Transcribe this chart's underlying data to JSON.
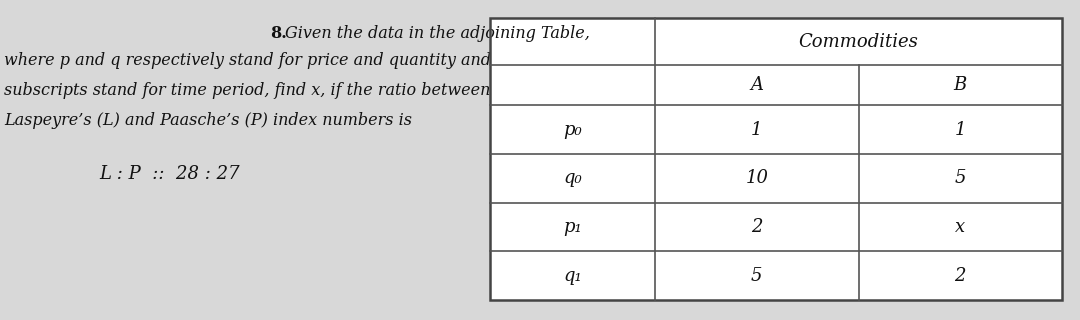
{
  "bg_color": "#d8d8d8",
  "question_number": "8.",
  "question_line1": " Given the data in the adjoining Table,",
  "question_line2": "where p and q respectively stand for price and quantity and",
  "question_line3": "subscripts stand for time period, find x, if the ratio between",
  "question_line4": "Laspeyre’s (L) and Paasche’s (P) index numbers is",
  "ratio_text": "L : P  ::  28 : 27",
  "table_header_main": "Commodities",
  "table_col_headers": [
    "A",
    "B"
  ],
  "table_row_labels": [
    "p₀",
    "q₀",
    "p₁",
    "q₁"
  ],
  "table_data": [
    [
      "1",
      "1"
    ],
    [
      "10",
      "5"
    ],
    [
      "2",
      "x"
    ],
    [
      "5",
      "2"
    ]
  ],
  "text_color": "#111111",
  "font_size_q_num": 11.5,
  "font_size_question": 11.5,
  "font_size_ratio": 13,
  "font_size_table": 13
}
